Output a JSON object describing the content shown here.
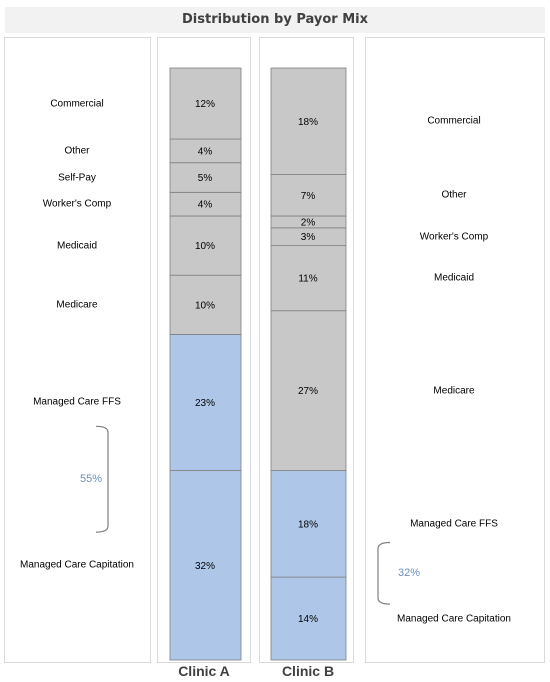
{
  "title": "Distribution by Payor Mix",
  "chart_data": {
    "type": "bar",
    "stacked": true,
    "categories": [
      "Clinic A",
      "Clinic B"
    ],
    "series": [
      {
        "name": "Managed Care Capitation",
        "values": [
          32,
          14
        ],
        "color": "#aec7e8"
      },
      {
        "name": "Managed Care FFS",
        "values": [
          23,
          18
        ],
        "color": "#aec7e8"
      },
      {
        "name": "Medicare",
        "values": [
          10,
          27
        ],
        "color": "#c8c8c8"
      },
      {
        "name": "Medicaid",
        "values": [
          10,
          11
        ],
        "color": "#c8c8c8"
      },
      {
        "name": "Worker's Comp",
        "values": [
          4,
          3
        ],
        "color": "#c8c8c8"
      },
      {
        "name": "Self-Pay",
        "values": [
          5,
          2
        ],
        "color": "#c8c8c8"
      },
      {
        "name": "Other",
        "values": [
          4,
          7
        ],
        "color": "#c8c8c8"
      },
      {
        "name": "Commercial",
        "values": [
          12,
          18
        ],
        "color": "#c8c8c8"
      }
    ],
    "value_labels": {
      "Clinic A": [
        "32%",
        "23%",
        "10%",
        "10%",
        "4%",
        "5%",
        "4%",
        "12%"
      ],
      "Clinic B": [
        "14%",
        "18%",
        "27%",
        "11%",
        "3%",
        "2%",
        "7%",
        "18%"
      ]
    },
    "left_labels": [
      "Managed Care Capitation",
      "Managed Care FFS",
      "Medicare",
      "Medicaid",
      "Worker's Comp",
      "Self-Pay",
      "Other",
      "Commercial"
    ],
    "right_labels": [
      "Managed Care Capitation",
      "Managed Care FFS",
      "Medicare",
      "Medicaid",
      "Worker's Comp",
      "Other",
      "Commercial"
    ],
    "bracket_notes": {
      "Clinic A": "55%",
      "Clinic B": "32%"
    },
    "ylim": [
      0,
      100
    ],
    "grid": false
  }
}
